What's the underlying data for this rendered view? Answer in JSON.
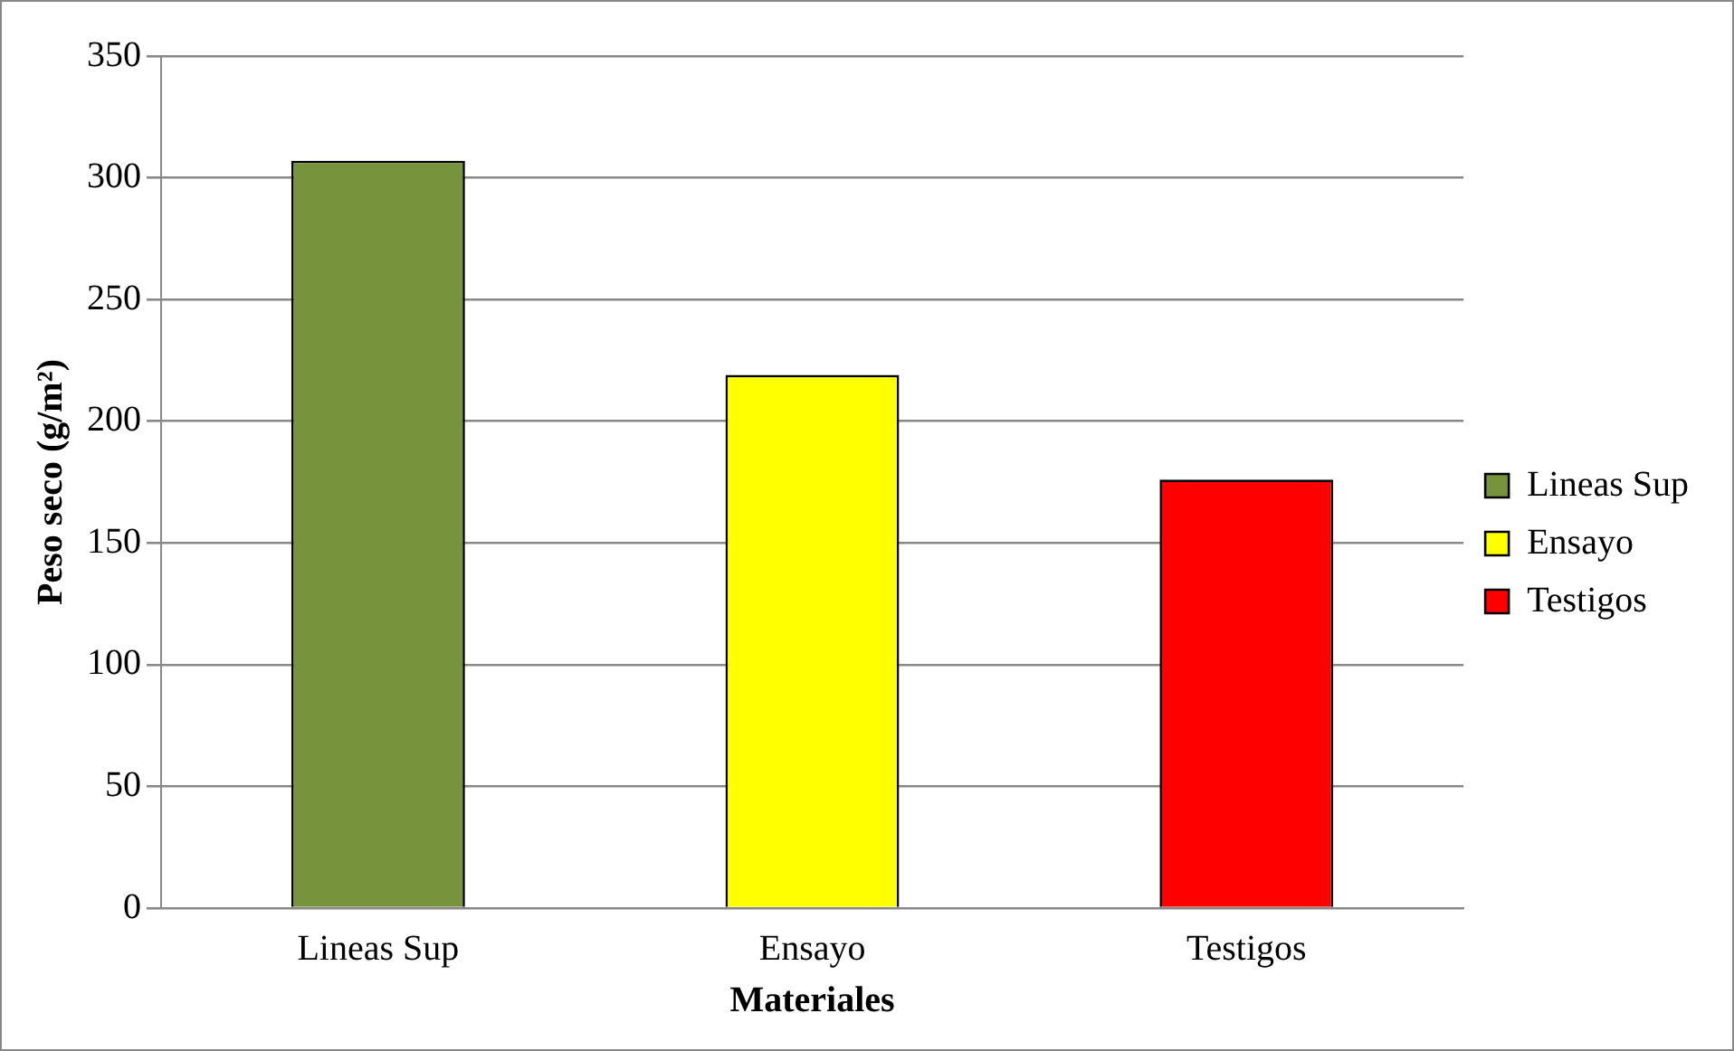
{
  "chart_data": {
    "type": "bar",
    "xlabel": "Materiales",
    "ylabel": "Peso seco (g/m²)",
    "categories": [
      "Lineas Sup",
      "Ensayo",
      "Testigos"
    ],
    "series": [
      {
        "name": "Lineas Sup",
        "color": "#77933c",
        "values": [
          307,
          null,
          null
        ]
      },
      {
        "name": "Ensayo",
        "color": "#ffff00",
        "values": [
          null,
          219,
          null
        ]
      },
      {
        "name": "Testigos",
        "color": "#ff0000",
        "values": [
          null,
          null,
          176
        ]
      }
    ],
    "ylim": [
      0,
      350
    ],
    "yticks": [
      0,
      50,
      100,
      150,
      200,
      250,
      300,
      350
    ],
    "grid": "y",
    "legend": "right"
  }
}
